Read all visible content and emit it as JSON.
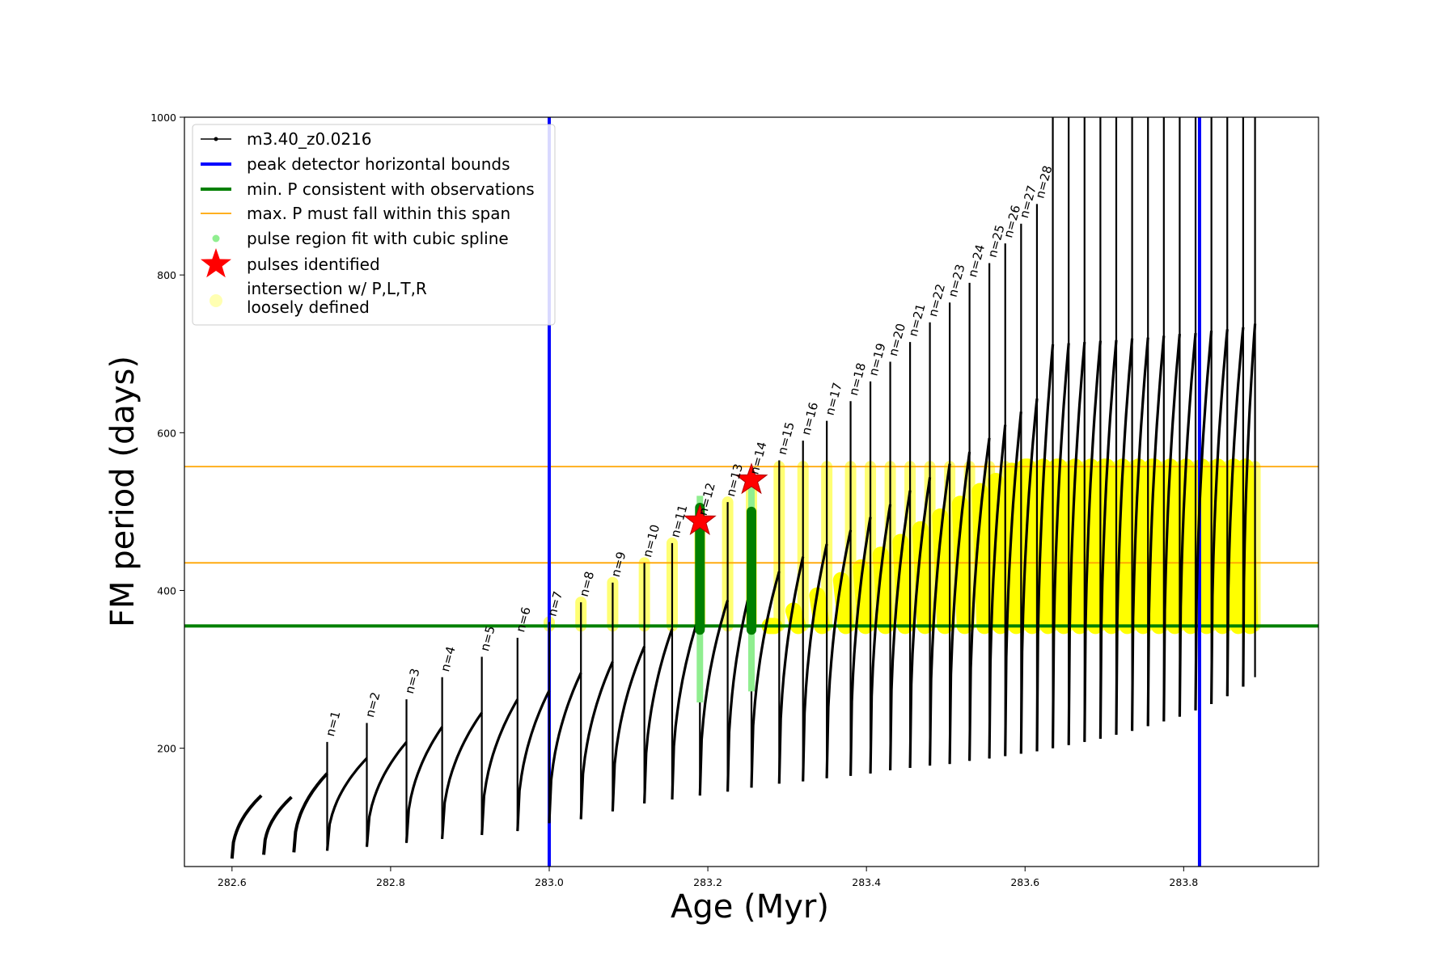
{
  "chart_data": {
    "type": "line",
    "title": "",
    "xlabel": "Age (Myr)",
    "ylabel": "FM period (days)",
    "xlim": [
      282.54,
      283.97
    ],
    "ylim": [
      50,
      1000
    ],
    "xticks": [
      282.6,
      282.8,
      283.0,
      283.2,
      283.4,
      283.6,
      283.8
    ],
    "xtick_labels": [
      "282.6",
      "282.8",
      "283.0",
      "283.2",
      "283.4",
      "283.6",
      "283.8"
    ],
    "yticks": [
      200,
      400,
      600,
      800,
      1000
    ],
    "ytick_labels": [
      "200",
      "400",
      "600",
      "800",
      "1000"
    ],
    "grid": false,
    "legend_position": "top-left",
    "legend": [
      {
        "label": "m3.40_z0.0216",
        "style": "black-line-dot"
      },
      {
        "label": "peak detector horizontal bounds",
        "style": "blue-line"
      },
      {
        "label": "min. P consistent with observations",
        "style": "green-line"
      },
      {
        "label": "max. P must fall within this span",
        "style": "orange-line"
      },
      {
        "label": "pulse region fit with cubic spline",
        "style": "lightgreen-dot"
      },
      {
        "label": "pulses identified",
        "style": "red-star"
      },
      {
        "label": "intersection w/ P,L,T,R",
        "label2": "loosely defined",
        "style": "yellow-dot"
      }
    ],
    "reference_lines": {
      "vertical": [
        {
          "x": 283.0,
          "color": "#0000ff"
        },
        {
          "x": 283.82,
          "color": "#0000ff"
        }
      ],
      "horizontal": [
        {
          "y": 355,
          "color": "#008000"
        },
        {
          "y": 435,
          "color": "#ffa500"
        },
        {
          "y": 557,
          "color": "#ffa500"
        }
      ]
    },
    "pulses": [
      {
        "n": "n=1",
        "x": 282.72,
        "low": 70,
        "top": 208
      },
      {
        "n": "n=2",
        "x": 282.77,
        "low": 75,
        "top": 232
      },
      {
        "n": "n=3",
        "x": 282.82,
        "low": 80,
        "top": 262
      },
      {
        "n": "n=4",
        "x": 282.865,
        "low": 85,
        "top": 290
      },
      {
        "n": "n=5",
        "x": 282.915,
        "low": 90,
        "top": 316
      },
      {
        "n": "n=6",
        "x": 282.96,
        "low": 95,
        "top": 340
      },
      {
        "n": "n=7",
        "x": 283.0,
        "low": 105,
        "top": 360
      },
      {
        "n": "n=8",
        "x": 283.04,
        "low": 110,
        "top": 385
      },
      {
        "n": "n=9",
        "x": 283.08,
        "low": 120,
        "top": 410
      },
      {
        "n": "n=10",
        "x": 283.12,
        "low": 130,
        "top": 435
      },
      {
        "n": "n=11",
        "x": 283.155,
        "low": 135,
        "top": 460
      },
      {
        "n": "n=12",
        "x": 283.19,
        "low": 140,
        "top": 488
      },
      {
        "n": "n=13",
        "x": 283.225,
        "low": 145,
        "top": 512
      },
      {
        "n": "n=14",
        "x": 283.255,
        "low": 150,
        "top": 540
      },
      {
        "n": "n=15",
        "x": 283.29,
        "low": 155,
        "top": 565
      },
      {
        "n": "n=16",
        "x": 283.32,
        "low": 158,
        "top": 590
      },
      {
        "n": "n=17",
        "x": 283.35,
        "low": 162,
        "top": 615
      },
      {
        "n": "n=18",
        "x": 283.38,
        "low": 165,
        "top": 640
      },
      {
        "n": "n=19",
        "x": 283.405,
        "low": 168,
        "top": 665
      },
      {
        "n": "n=20",
        "x": 283.43,
        "low": 172,
        "top": 690
      },
      {
        "n": "n=21",
        "x": 283.455,
        "low": 175,
        "top": 715
      },
      {
        "n": "n=22",
        "x": 283.48,
        "low": 178,
        "top": 740
      },
      {
        "n": "n=23",
        "x": 283.505,
        "low": 180,
        "top": 765
      },
      {
        "n": "n=24",
        "x": 283.53,
        "low": 184,
        "top": 790
      },
      {
        "n": "n=25",
        "x": 283.555,
        "low": 187,
        "top": 815
      },
      {
        "n": "n=26",
        "x": 283.575,
        "low": 190,
        "top": 840
      },
      {
        "n": "n=27",
        "x": 283.595,
        "low": 193,
        "top": 865
      },
      {
        "n": "n=28",
        "x": 283.615,
        "low": 196,
        "top": 890
      },
      {
        "n": "",
        "x": 283.635,
        "low": 200,
        "top": 1000
      },
      {
        "n": "",
        "x": 283.655,
        "low": 204,
        "top": 1000
      },
      {
        "n": "",
        "x": 283.675,
        "low": 208,
        "top": 1000
      },
      {
        "n": "",
        "x": 283.695,
        "low": 212,
        "top": 1000
      },
      {
        "n": "",
        "x": 283.715,
        "low": 217,
        "top": 1000
      },
      {
        "n": "",
        "x": 283.735,
        "low": 222,
        "top": 1000
      },
      {
        "n": "",
        "x": 283.755,
        "low": 228,
        "top": 1000
      },
      {
        "n": "",
        "x": 283.775,
        "low": 234,
        "top": 1000
      },
      {
        "n": "",
        "x": 283.795,
        "low": 240,
        "top": 1000
      },
      {
        "n": "",
        "x": 283.815,
        "low": 248,
        "top": 1000
      },
      {
        "n": "",
        "x": 283.835,
        "low": 256,
        "top": 1000
      },
      {
        "n": "",
        "x": 283.855,
        "low": 266,
        "top": 1000
      },
      {
        "n": "",
        "x": 283.875,
        "low": 278,
        "top": 1000
      },
      {
        "n": "",
        "x": 283.89,
        "low": 290,
        "top": 1000
      }
    ],
    "early_cycles": [
      {
        "x0": 282.6,
        "x1": 282.637,
        "y0": 60,
        "y1": 140
      },
      {
        "x0": 282.64,
        "x1": 282.675,
        "y0": 65,
        "y1": 138
      },
      {
        "x0": 282.678,
        "x1": 282.72,
        "y0": 68,
        "y1": 168
      }
    ],
    "pulses_identified": [
      {
        "x": 283.19,
        "y": 488
      },
      {
        "x": 283.255,
        "y": 540
      }
    ],
    "spline_regions": [
      {
        "x": 283.19,
        "ylow": 258,
        "yhigh": 520
      },
      {
        "x": 283.255,
        "ylow": 272,
        "yhigh": 545
      }
    ],
    "green_fit_regions": [
      {
        "x": 283.19,
        "ylow": 350,
        "yhigh": 505
      },
      {
        "x": 283.255,
        "ylow": 350,
        "yhigh": 500
      }
    ],
    "yellow_band": {
      "ylow": 355,
      "yhigh": 557
    },
    "colors": {
      "model": "#000000",
      "bounds": "#0000ff",
      "minP": "#008000",
      "maxP": "#ffa500",
      "spline": "#90ee90",
      "pulse": "#ff0000",
      "intersection": "#ffff00",
      "fit": "#008000"
    }
  }
}
